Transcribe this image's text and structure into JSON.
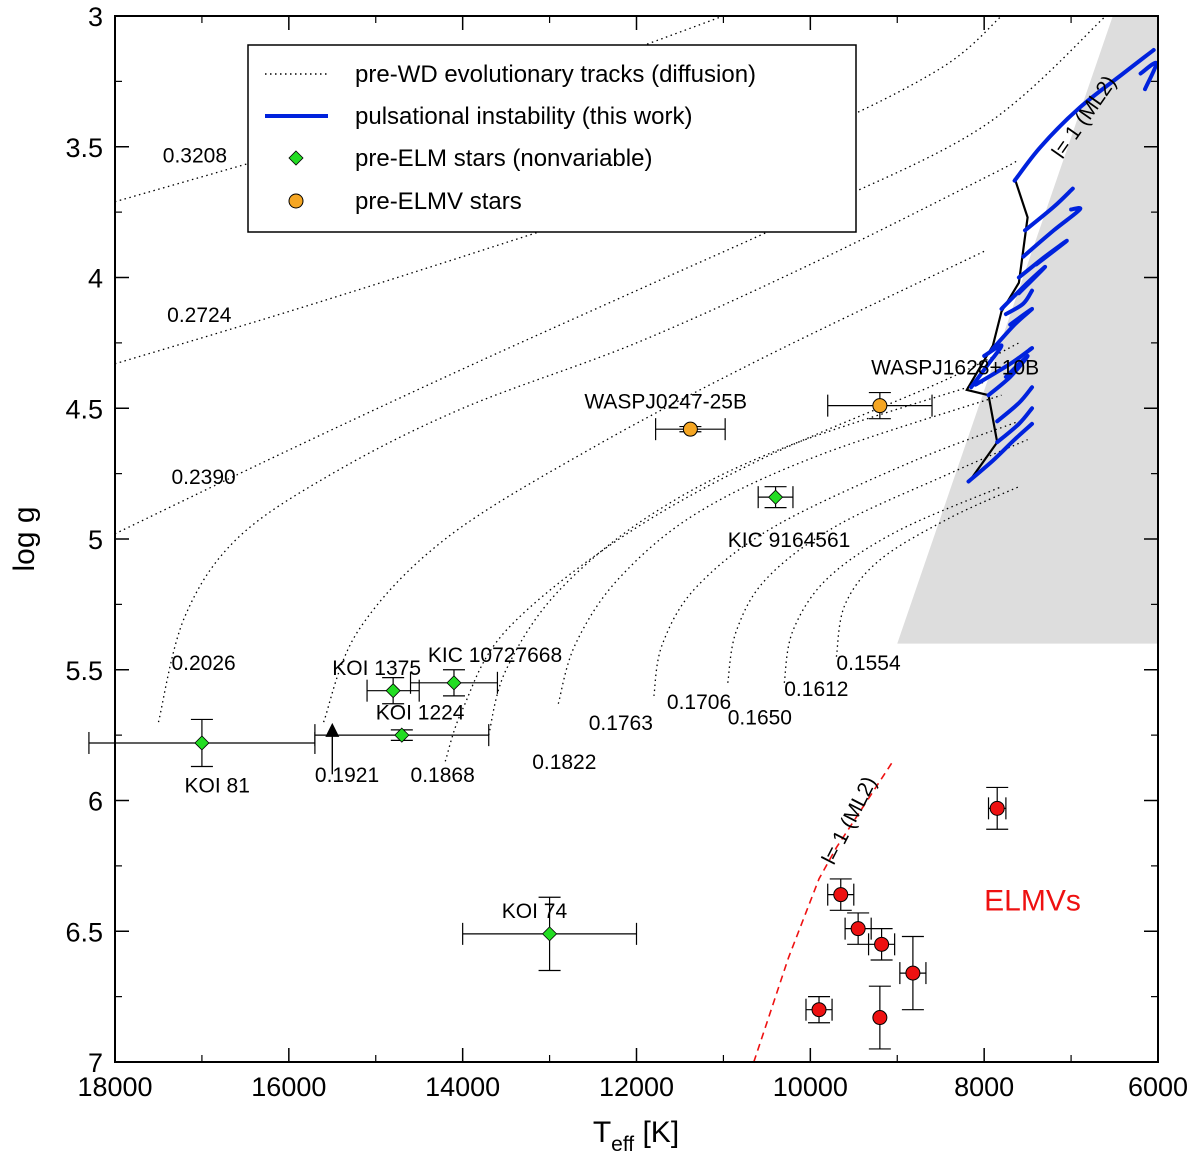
{
  "chart_data": {
    "type": "scatter",
    "xlabel": "T",
    "xlabel_sub": "eff",
    "xlabel_unit": " [K]",
    "ylabel": "log g",
    "xlim": [
      18000,
      6000
    ],
    "ylim": [
      3,
      7
    ],
    "x_ticks": [
      18000,
      16000,
      14000,
      12000,
      10000,
      8000,
      6000
    ],
    "y_ticks": [
      3,
      3.5,
      4,
      4.5,
      5,
      5.5,
      6,
      6.5,
      7
    ],
    "legend": {
      "position": "top-center",
      "entries": [
        {
          "label": "pre-WD evolutionary tracks (diffusion)",
          "style": "dotted"
        },
        {
          "label": "pulsational instability (this work)",
          "style": "blue-line"
        },
        {
          "label": "pre-ELM stars (nonvariable)",
          "style": "green-diamond"
        },
        {
          "label": "pre-ELMV stars",
          "style": "orange-circle"
        }
      ]
    },
    "colors": {
      "pre_elm": "#22dd22",
      "pre_elmv": "#f5a623",
      "elmv": "#ee1111",
      "instability": "#0022dd",
      "region": "#dddddd",
      "red_edge_label": "#ee1111"
    },
    "tracks": [
      {
        "mass": "0.3208",
        "points": [
          [
            18000,
            3.71
          ],
          [
            16000,
            3.52
          ],
          [
            14000,
            3.33
          ],
          [
            12500,
            3.18
          ],
          [
            11000,
            3.0
          ]
        ]
      },
      {
        "mass": "0.2724",
        "points": [
          [
            18000,
            4.33
          ],
          [
            16000,
            4.13
          ],
          [
            14000,
            3.92
          ],
          [
            12000,
            3.7
          ],
          [
            10000,
            3.45
          ],
          [
            8500,
            3.2
          ],
          [
            7800,
            3.0
          ]
        ]
      },
      {
        "mass": "0.2390",
        "points": [
          [
            18000,
            4.98
          ],
          [
            16000,
            4.66
          ],
          [
            14000,
            4.35
          ],
          [
            12000,
            4.05
          ],
          [
            10000,
            3.75
          ],
          [
            8000,
            3.42
          ],
          [
            6600,
            3.0
          ]
        ]
      },
      {
        "mass": "0.2026",
        "points": [
          [
            17500,
            5.7
          ],
          [
            17200,
            5.3
          ],
          [
            16600,
            5.0
          ],
          [
            15500,
            4.75
          ],
          [
            14000,
            4.5
          ],
          [
            12000,
            4.25
          ],
          [
            10000,
            3.95
          ],
          [
            8000,
            3.62
          ],
          [
            7600,
            3.55
          ]
        ]
      },
      {
        "mass": "0.1921",
        "points": [
          [
            15600,
            5.7
          ],
          [
            15200,
            5.35
          ],
          [
            14200,
            5.0
          ],
          [
            12500,
            4.65
          ],
          [
            10500,
            4.3
          ],
          [
            8000,
            3.9
          ]
        ]
      },
      {
        "mass": "0.1868",
        "points": [
          [
            14200,
            5.85
          ],
          [
            14000,
            5.65
          ],
          [
            13500,
            5.35
          ],
          [
            12200,
            5.0
          ],
          [
            10600,
            4.7
          ],
          [
            8500,
            4.4
          ],
          [
            7600,
            4.25
          ]
        ]
      },
      {
        "mass": "0.1822",
        "points": [
          [
            13700,
            5.75
          ],
          [
            13500,
            5.5
          ],
          [
            12900,
            5.2
          ],
          [
            11800,
            4.9
          ],
          [
            10300,
            4.65
          ],
          [
            8000,
            4.4
          ]
        ]
      },
      {
        "mass": "0.1763",
        "points": [
          [
            12900,
            5.63
          ],
          [
            12700,
            5.4
          ],
          [
            12200,
            5.15
          ],
          [
            11300,
            4.9
          ],
          [
            9900,
            4.68
          ],
          [
            7800,
            4.45
          ]
        ]
      },
      {
        "mass": "0.1706",
        "points": [
          [
            11800,
            5.6
          ],
          [
            11700,
            5.4
          ],
          [
            11300,
            5.18
          ],
          [
            10400,
            4.95
          ],
          [
            8800,
            4.7
          ],
          [
            7600,
            4.55
          ]
        ]
      },
      {
        "mass": "0.1650",
        "points": [
          [
            10950,
            5.55
          ],
          [
            10850,
            5.35
          ],
          [
            10500,
            5.15
          ],
          [
            9700,
            4.95
          ],
          [
            8400,
            4.75
          ],
          [
            7500,
            4.62
          ]
        ]
      },
      {
        "mass": "0.1612",
        "points": [
          [
            10300,
            5.55
          ],
          [
            10200,
            5.35
          ],
          [
            9800,
            5.15
          ],
          [
            9000,
            4.97
          ],
          [
            7800,
            4.8
          ]
        ]
      },
      {
        "mass": "0.1554",
        "points": [
          [
            9700,
            5.45
          ],
          [
            9600,
            5.25
          ],
          [
            9200,
            5.08
          ],
          [
            8400,
            4.92
          ],
          [
            7600,
            4.8
          ]
        ]
      }
    ],
    "track_label_positions": [
      {
        "mass": "0.3208",
        "at": [
          17450,
          3.56
        ]
      },
      {
        "mass": "0.2724",
        "at": [
          17400,
          4.17
        ]
      },
      {
        "mass": "0.2390",
        "at": [
          17350,
          4.79
        ]
      },
      {
        "mass": "0.2026",
        "at": [
          17350,
          5.5
        ]
      },
      {
        "mass": "0.1921",
        "at": [
          15700,
          5.93
        ]
      },
      {
        "mass": "0.1868",
        "at": [
          14600,
          5.93
        ]
      },
      {
        "mass": "0.1822",
        "at": [
          13200,
          5.88
        ]
      },
      {
        "mass": "0.1763",
        "at": [
          12550,
          5.73
        ]
      },
      {
        "mass": "0.1706",
        "at": [
          11650,
          5.65
        ]
      },
      {
        "mass": "0.1650",
        "at": [
          10950,
          5.71
        ]
      },
      {
        "mass": "0.1612",
        "at": [
          10300,
          5.6
        ]
      },
      {
        "mass": "0.1554",
        "at": [
          9700,
          5.5
        ]
      }
    ],
    "pre_elm_stars": [
      {
        "name": "KOI 81",
        "teff": 17000,
        "teff_err": 1300,
        "logg": 5.78,
        "logg_err": 0.09,
        "label_at": [
          17200,
          5.97
        ]
      },
      {
        "name": "KOI 1375",
        "teff": 14800,
        "teff_err": 300,
        "logg": 5.58,
        "logg_err": 0.05,
        "label_at": [
          15500,
          5.52
        ]
      },
      {
        "name": "KOI 1224",
        "teff": 14700,
        "teff_err": 1000,
        "logg": 5.75,
        "logg_err": 0.02,
        "label_at": [
          15000,
          5.69
        ]
      },
      {
        "name": "KIC 10727668",
        "teff": 14100,
        "teff_err": 500,
        "logg": 5.55,
        "logg_err": 0.05,
        "label_at": [
          14400,
          5.47
        ]
      },
      {
        "name": "KOI 74",
        "teff": 13000,
        "teff_err": 1000,
        "logg": 6.51,
        "logg_err": 0.14,
        "label_at": [
          13550,
          6.45
        ]
      },
      {
        "name": "KIC 9164561",
        "teff": 10400,
        "teff_err": 200,
        "logg": 4.84,
        "logg_err": 0.04,
        "label_at": [
          10950,
          5.03
        ]
      }
    ],
    "pre_elmv_stars": [
      {
        "name": "WASPJ0247-25B",
        "teff": 11380,
        "teff_err": 400,
        "logg": 4.58,
        "logg_err": 0.01,
        "label_at": [
          12600,
          4.5
        ]
      },
      {
        "name": "WASPJ1628+10B",
        "teff": 9200,
        "teff_err": 600,
        "logg": 4.49,
        "logg_err": 0.05,
        "label_at": [
          9300,
          4.37
        ]
      }
    ],
    "elmv_stars": [
      {
        "teff": 7850,
        "teff_err": 100,
        "logg": 6.03,
        "logg_err": 0.08
      },
      {
        "teff": 9650,
        "teff_err": 150,
        "logg": 6.36,
        "logg_err": 0.06
      },
      {
        "teff": 9450,
        "teff_err": 150,
        "logg": 6.49,
        "logg_err": 0.06
      },
      {
        "teff": 9180,
        "teff_err": 150,
        "logg": 6.55,
        "logg_err": 0.06
      },
      {
        "teff": 8820,
        "teff_err": 150,
        "logg": 6.66,
        "logg_err": 0.14
      },
      {
        "teff": 9900,
        "teff_err": 150,
        "logg": 6.8,
        "logg_err": 0.05
      },
      {
        "teff": 9200,
        "teff_err": 0,
        "logg": 6.83,
        "logg_err": 0.12
      }
    ],
    "elmv_label": {
      "text": "ELMVs",
      "at": [
        8000,
        6.42
      ]
    },
    "red_edge": {
      "label": "l= 1 (ML2)",
      "points": [
        [
          10650,
          7.0
        ],
        [
          10250,
          6.6
        ],
        [
          9900,
          6.3
        ],
        [
          9700,
          6.18
        ],
        [
          9050,
          5.85
        ]
      ],
      "label_at": [
        9730,
        6.25
      ]
    },
    "instability_label": {
      "text": "l= 1 (ML2)",
      "at": [
        7100,
        3.55
      ]
    },
    "instability_region": [
      [
        6520,
        3.0
      ],
      [
        6000,
        3.0
      ],
      [
        6000,
        5.4
      ],
      [
        9000,
        5.4
      ]
    ],
    "red_boundary": [
      [
        7650,
        3.62
      ],
      [
        7500,
        3.77
      ],
      [
        7600,
        4.02
      ],
      [
        7800,
        4.13
      ],
      [
        7900,
        4.26
      ],
      [
        8200,
        4.43
      ],
      [
        7950,
        4.45
      ],
      [
        7850,
        4.63
      ],
      [
        8150,
        4.77
      ]
    ],
    "blue_segments": [
      [
        [
          7650,
          3.63
        ],
        [
          7350,
          3.5
        ],
        [
          6900,
          3.35
        ],
        [
          6400,
          3.22
        ],
        [
          6050,
          3.13
        ]
      ],
      [
        [
          6200,
          3.22
        ],
        [
          6020,
          3.18
        ],
        [
          6150,
          3.28
        ]
      ],
      [
        [
          7530,
          3.82
        ],
        [
          7200,
          3.73
        ],
        [
          6980,
          3.66
        ]
      ],
      [
        [
          7550,
          3.92
        ],
        [
          7200,
          3.82
        ],
        [
          6900,
          3.74
        ],
        [
          7000,
          3.74
        ]
      ],
      [
        [
          7600,
          4.0
        ],
        [
          7300,
          3.92
        ],
        [
          7050,
          3.86
        ],
        [
          7400,
          3.95
        ]
      ],
      [
        [
          7800,
          4.12
        ],
        [
          7500,
          4.02
        ],
        [
          7300,
          3.96
        ],
        [
          7600,
          4.06
        ]
      ],
      [
        [
          7750,
          4.14
        ],
        [
          7550,
          4.1
        ],
        [
          7450,
          4.05
        ]
      ],
      [
        [
          7920,
          4.28
        ],
        [
          7650,
          4.18
        ],
        [
          7450,
          4.12
        ],
        [
          7700,
          4.18
        ]
      ],
      [
        [
          8150,
          4.42
        ],
        [
          7950,
          4.33
        ],
        [
          7800,
          4.26
        ],
        [
          8000,
          4.3
        ]
      ],
      [
        [
          8100,
          4.41
        ],
        [
          7700,
          4.33
        ],
        [
          7450,
          4.27
        ],
        [
          7650,
          4.32
        ]
      ],
      [
        [
          7950,
          4.45
        ],
        [
          7700,
          4.38
        ],
        [
          7500,
          4.3
        ],
        [
          7750,
          4.38
        ]
      ],
      [
        [
          7850,
          4.55
        ],
        [
          7600,
          4.48
        ],
        [
          7450,
          4.42
        ]
      ],
      [
        [
          7850,
          4.63
        ],
        [
          7600,
          4.56
        ],
        [
          7450,
          4.5
        ]
      ],
      [
        [
          8180,
          4.78
        ],
        [
          7900,
          4.7
        ],
        [
          7650,
          4.62
        ],
        [
          7450,
          4.56
        ]
      ]
    ]
  }
}
